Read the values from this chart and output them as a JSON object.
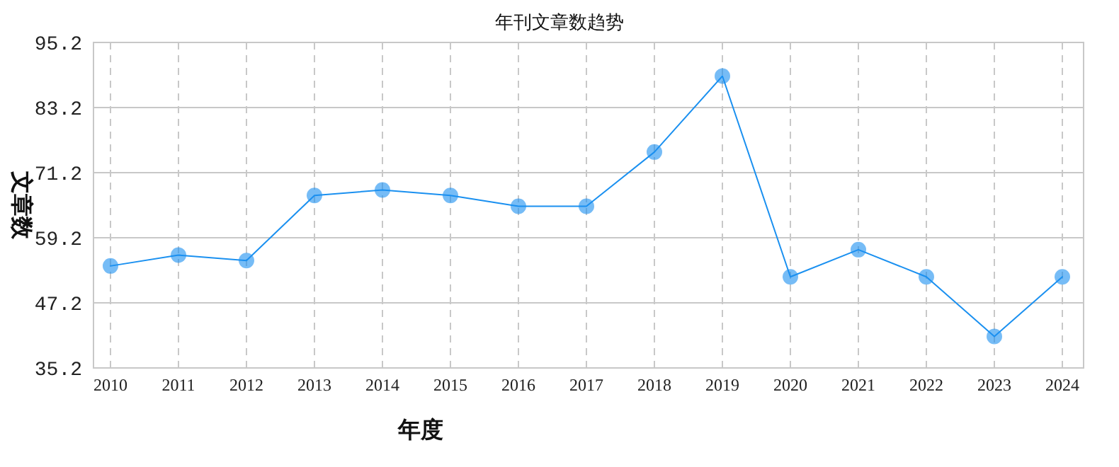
{
  "chart_data": {
    "type": "line",
    "title": "年刊文章数趋势",
    "xlabel": "年度",
    "ylabel": "文章数",
    "categories": [
      "2010",
      "2011",
      "2012",
      "2013",
      "2014",
      "2015",
      "2016",
      "2017",
      "2018",
      "2019",
      "2020",
      "2021",
      "2022",
      "2023",
      "2024"
    ],
    "series": [
      {
        "color": "#1a90f0",
        "values": [
          54,
          56,
          55,
          67,
          68,
          67,
          65,
          65,
          75,
          89,
          52,
          57,
          52,
          41,
          52
        ]
      }
    ],
    "ylim": [
      35.2,
      95.2
    ],
    "yticks": [
      35.2,
      47.2,
      59.2,
      71.2,
      83.2,
      95.2
    ],
    "grid": true,
    "marker": "circle",
    "line_style": "solid"
  }
}
